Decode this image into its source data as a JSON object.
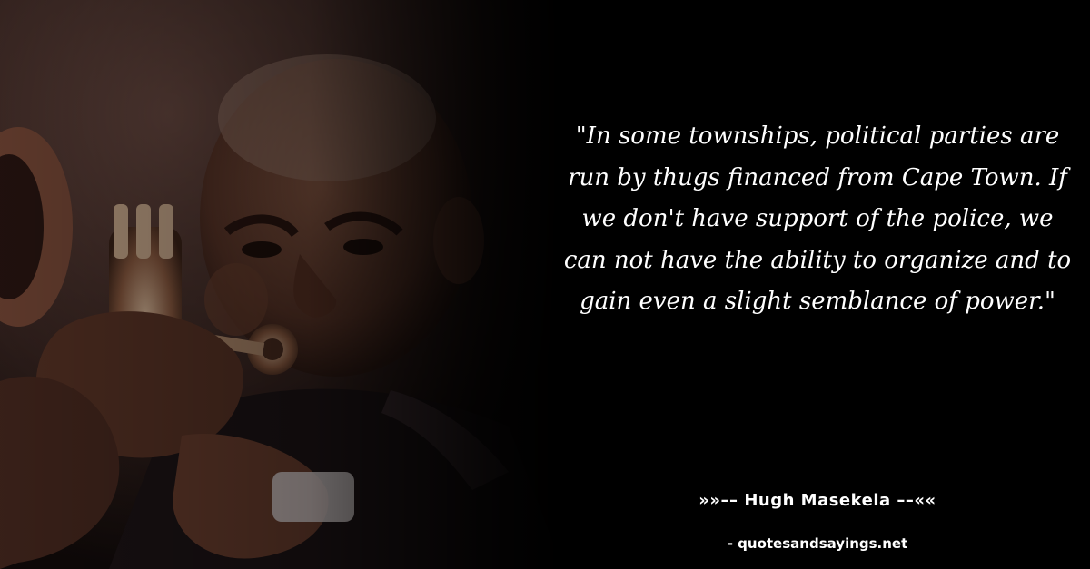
{
  "quote": {
    "text": "\"In some townships, political parties are run by thugs financed from Cape Town. If we don't have support of the police, we can not have the ability to organize and to gain even a slight semblance of power.\""
  },
  "author": {
    "text": "»»–– Hugh Masekela ––««"
  },
  "site": {
    "text": "- quotesandsayings.net"
  },
  "colors": {
    "background": "#000000",
    "text": "#ffffff"
  },
  "photo": {
    "subject": "man-playing-trumpet-photo"
  }
}
